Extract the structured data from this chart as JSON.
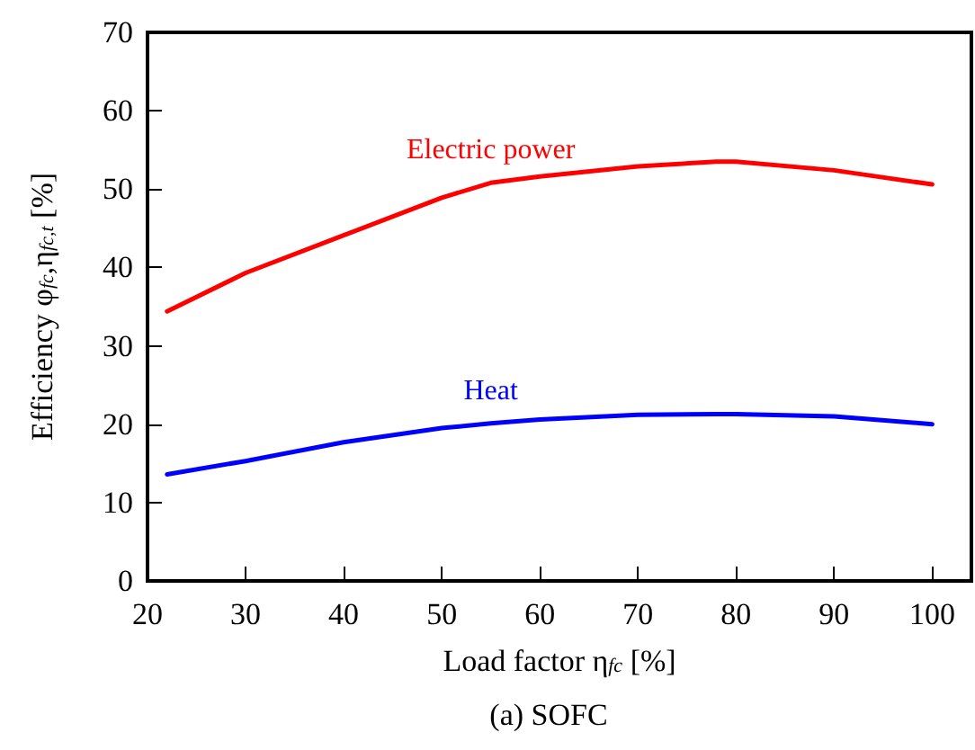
{
  "chart_data": {
    "type": "line",
    "title": "(a) SOFC",
    "xlabel": "Load factor η$_{fc}$ [%]",
    "ylabel": "Efficiency φ$_{fc}$,η$_{fc,t}$ [%]",
    "x": [
      22,
      30,
      40,
      50,
      55,
      60,
      70,
      78,
      80,
      90,
      100
    ],
    "series": [
      {
        "name": "Electric power",
        "color": "#ff0000",
        "values": [
          34.4,
          39.3,
          44.1,
          48.9,
          50.8,
          51.6,
          52.9,
          53.5,
          53.5,
          52.4,
          50.6
        ]
      },
      {
        "name": "Heat",
        "color": "#0000ff",
        "values": [
          13.6,
          15.3,
          17.7,
          19.5,
          20.1,
          20.6,
          21.2,
          21.3,
          21.3,
          21.0,
          20.0
        ]
      }
    ],
    "xlim": [
      20,
      104
    ],
    "xticks": [
      20,
      30,
      40,
      50,
      60,
      70,
      80,
      90,
      100
    ],
    "ylim": [
      0,
      70
    ],
    "yticks": [
      0,
      10,
      20,
      30,
      40,
      50,
      60,
      70
    ],
    "grid": false,
    "legend": false,
    "marker": "none",
    "line_style": "solid"
  }
}
